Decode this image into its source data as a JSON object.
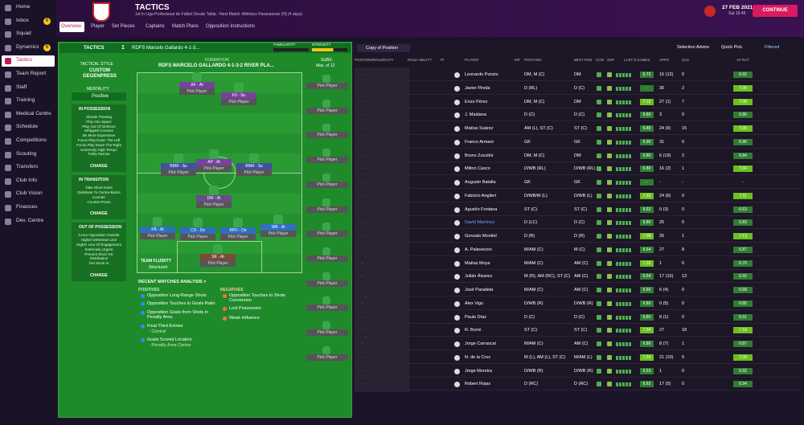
{
  "sidebar": {
    "items": [
      {
        "label": "Home"
      },
      {
        "label": "Inbox",
        "badge": 6
      },
      {
        "label": "Squad"
      },
      {
        "label": "Dynamics",
        "badge": 6
      },
      {
        "label": "Tactics"
      },
      {
        "label": "Team Report"
      },
      {
        "label": "Staff"
      },
      {
        "label": "Training"
      },
      {
        "label": "Medical Centre"
      },
      {
        "label": "Schedule"
      },
      {
        "label": "Competitions"
      },
      {
        "label": "Scouting"
      },
      {
        "label": "Transfers"
      },
      {
        "label": "Club Info"
      },
      {
        "label": "Club Vision"
      },
      {
        "label": "Finances"
      },
      {
        "label": "Dev. Centre"
      }
    ]
  },
  "header": {
    "title": "TACTICS",
    "subtitle": "1st in Liga Profesional de Fútbol Desde Tabla - Next Match: Athletico Paranaense (H) (4 days)",
    "date": "27 FEB 2021",
    "time": "Sat 16:45",
    "continue": "CONTINUE"
  },
  "tabs": [
    "Overview",
    "Player",
    "Set Pieces",
    "Captains",
    "Match Plans",
    "Opposition Instructions"
  ],
  "tactics": {
    "label": "TACTICS",
    "slot": "1",
    "name": "RDFS Marcelo Gallardo 4-1-3...",
    "familiarity": "FAMILIARITY",
    "intensity": "INTENSITY",
    "formation_label": "FORMATION",
    "formation": "RDFS MARCELO GALLARDO 4-1-3-2 RIVER PLA...",
    "subs_label": "SUBS:",
    "subs_max": "Max. of 12",
    "analysis": "Analysis",
    "pick": "Pick Player",
    "style": {
      "label": "TACTICAL STYLE",
      "value": "CUSTOM GEGENPRESS",
      "mentality_label": "MENTALITY",
      "mentality": "Positive",
      "change": "CHANGE",
      "groups": [
        {
          "title": "IN POSSESSION",
          "items": [
            "Shorter Passing",
            "Play Into Space",
            "Play Out Of Defence",
            "Whipped Crosses",
            "Be More Expressive",
            "Focus Play Down The Left",
            "Focus Play Down The Right",
            "Extremely High Tempo",
            "Fairly Narrow"
          ]
        },
        {
          "title": "IN TRANSITION",
          "items": [
            "Take Short Kicks",
            "Distribute To Centre-Backs",
            "Counter",
            "Counter-Press"
          ]
        },
        {
          "title": "OUT OF POSSESSION",
          "items": [
            "Force Opposition Outside",
            "Higher Defensive Line",
            "Higher Line Of Engagement",
            "Extremely Urgent",
            "Prevent Short GK",
            "Distribution",
            "Get Stuck In"
          ]
        }
      ]
    },
    "positions": [
      "AF - At",
      "F9 - Su",
      "BBM - Su",
      "AP - At",
      "BBM - Su",
      "DM - At",
      "FB - At",
      "CD - De",
      "BPD - De",
      "WB - At",
      "SK - At"
    ],
    "fluidity_label": "TEAM FLUIDITY",
    "fluidity": "Structured",
    "recent": {
      "title": "RECENT MATCHES ANALYSIS >",
      "positives_label": "POSITIVES",
      "positives": [
        "Opposition Long-Range Shots",
        "Opposition Touches to Goals Ratio",
        "Opposition Goals from Shots in Penalty Area",
        "Final Third Entries",
        "- Central",
        "Goals Scored Location",
        "- Penalty Area Centre"
      ],
      "negatives_label": "NEGATIVES",
      "negatives": [
        "Opposition Touches to Shots Conversion",
        "Lost Possession",
        "Weak Influence"
      ]
    }
  },
  "toolbar": {
    "view": "Copy of Position",
    "advice": "Selection Advice",
    "quick": "Quick Pick",
    "filter": "Filtered"
  },
  "table": {
    "columns": [
      "POSITION/ROLE/DUTY",
      "ROLE ABILITY",
      "PI",
      "PLAYER",
      "INF",
      "POSITION",
      "BEST POS",
      "CON",
      "SHP",
      "LAST 5 GAMES",
      "APPS",
      "GLS",
      "AV RAT"
    ],
    "empty": "-",
    "rows": [
      [
        "Leonardo Ponzio",
        "DM, M (C)",
        "DM",
        "6.72",
        "15 (12)",
        "0",
        "6.92"
      ],
      [
        "Javier Pinola",
        "D (RL)",
        "D (C)",
        "-",
        "30",
        "2",
        "7.00"
      ],
      [
        "Enzo Pérez",
        "DM, M (C)",
        "DM",
        "7.12",
        "27 (1)",
        "7",
        "7.08"
      ],
      [
        "J. Maidana",
        "D (C)",
        "D (C)",
        "6.80",
        "3",
        "0",
        "6.86"
      ],
      [
        "Matías Suárez",
        "AM (L), ST (C)",
        "ST (C)",
        "6.80",
        "24 (6)",
        "15",
        "7.00"
      ],
      [
        "Franco Armani",
        "GK",
        "GK",
        "6.90",
        "31",
        "0",
        "6.96"
      ],
      [
        "Bruno Zuculini",
        "DM, M (C)",
        "DM",
        "6.80",
        "6 (19)",
        "2",
        "6.84"
      ],
      [
        "Milton Casco",
        "D/WB (RL)",
        "D/WB (RL)",
        "6.80",
        "16 (2)",
        "1",
        "7.04"
      ],
      [
        "Augusto Batalla",
        "GK",
        "GK",
        "-",
        "-",
        "-",
        "-"
      ],
      [
        "Fabricio Angileri",
        "D/WB/M (L)",
        "D/WB (L)",
        "7.32",
        "24 (6)",
        "0",
        "7.11"
      ],
      [
        "Agustín Fontana",
        "ST (C)",
        "ST (C)",
        "6.62",
        "0 (3)",
        "0",
        "6.63"
      ],
      [
        "David Martínez",
        "D (LC)",
        "D (C)",
        "6.80",
        "25",
        "0",
        "6.83"
      ],
      [
        "Gonzalo Montiel",
        "D (R)",
        "D (R)",
        "7.08",
        "26",
        "1",
        "7.13"
      ],
      [
        "A. Palavecino",
        "M/AM (C)",
        "M (C)",
        "6.64",
        "27",
        "8",
        "6.87"
      ],
      [
        "Matías Moya",
        "M/AM (C)",
        "AM (C)",
        "7.02",
        "1",
        "0",
        "6.70"
      ],
      [
        "Julián Álvarez",
        "M (R), AM (RC), ST (C)",
        "AM (C)",
        "6.54",
        "17 (15)",
        "13",
        "6.92"
      ],
      [
        "José Paradela",
        "M/AM (C)",
        "AM (C)",
        "6.60",
        "6 (4)",
        "0",
        "6.68"
      ],
      [
        "Alex Vigo",
        "D/WB (R)",
        "D/WB (R)",
        "6.80",
        "0 (5)",
        "0",
        "6.85"
      ],
      [
        "Paulo Díaz",
        "D (C)",
        "D (C)",
        "6.80",
        "8 (1)",
        "0",
        "6.91"
      ],
      [
        "R. Borré",
        "ST (C)",
        "ST (C)",
        "7.34",
        "27",
        "18",
        "7.18"
      ],
      [
        "Jorge Carrascal",
        "M/AM (C)",
        "AM (C)",
        "6.80",
        "8 (7)",
        "1",
        "6.87"
      ],
      [
        "N. de la Cruz",
        "M (L), AM (L), ST (C)",
        "M/AM (L)",
        "7.34",
        "21 (10)",
        "5",
        "7.09"
      ],
      [
        "Jorge Moreira",
        "D/WB (R)",
        "D/WB (R)",
        "6.53",
        "1",
        "0",
        "6.92"
      ],
      [
        "Robert Rojas",
        "D (RC)",
        "D (RC)",
        "6.62",
        "17 (5)",
        "0",
        "6.94"
      ]
    ]
  }
}
